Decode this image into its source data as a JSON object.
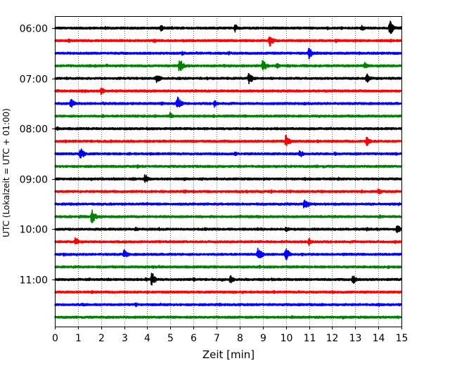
{
  "chart_data": {
    "type": "line",
    "title": "",
    "xlabel": "Zeit  [min]",
    "ylabel": "UTC (Lokalzeit = UTC + 01:00)",
    "xlim": [
      0,
      15
    ],
    "x_ticks": [
      "0",
      "1",
      "2",
      "3",
      "4",
      "5",
      "6",
      "7",
      "8",
      "9",
      "10",
      "11",
      "12",
      "13",
      "14",
      "15"
    ],
    "y_ticks": [
      "06:00",
      "07:00",
      "08:00",
      "09:00",
      "10:00",
      "11:00"
    ],
    "trace_interval_min": 15,
    "grid": "vertical dotted",
    "colors": [
      "#000000",
      "#ff0000",
      "#0000ff",
      "#008000"
    ],
    "traces": [
      {
        "start": "06:00",
        "color": "#000000",
        "events": [
          [
            2.2,
            0.3
          ],
          [
            4.6,
            0.5
          ],
          [
            7.8,
            0.6
          ],
          [
            14.5,
            1.0
          ],
          [
            13.3,
            0.4
          ]
        ]
      },
      {
        "start": "06:15",
        "color": "#ff0000",
        "events": [
          [
            9.3,
            0.9
          ],
          [
            0.6,
            0.3
          ],
          [
            4.3,
            0.3
          ],
          [
            13.0,
            0.2
          ]
        ]
      },
      {
        "start": "06:30",
        "color": "#0000ff",
        "events": [
          [
            11.0,
            0.8
          ],
          [
            5.5,
            0.3
          ],
          [
            7.5,
            0.2
          ]
        ]
      },
      {
        "start": "06:45",
        "color": "#008000",
        "events": [
          [
            5.4,
            1.0
          ],
          [
            9.0,
            0.9
          ],
          [
            9.6,
            0.4
          ],
          [
            13.4,
            0.5
          ],
          [
            1.5,
            0.2
          ]
        ]
      },
      {
        "start": "07:00",
        "color": "#000000",
        "events": [
          [
            4.4,
            0.7
          ],
          [
            8.4,
            0.9
          ],
          [
            13.5,
            0.7
          ],
          [
            0.5,
            0.2
          ]
        ]
      },
      {
        "start": "07:15",
        "color": "#ff0000",
        "events": [
          [
            2.0,
            0.5
          ],
          [
            4.0,
            0.2
          ],
          [
            9.0,
            0.2
          ]
        ]
      },
      {
        "start": "07:30",
        "color": "#0000ff",
        "events": [
          [
            0.7,
            0.7
          ],
          [
            5.3,
            1.0
          ],
          [
            6.9,
            0.5
          ],
          [
            11.0,
            0.2
          ]
        ]
      },
      {
        "start": "07:45",
        "color": "#008000",
        "events": [
          [
            5.0,
            0.5
          ],
          [
            3.5,
            0.2
          ],
          [
            12.0,
            0.2
          ]
        ]
      },
      {
        "start": "08:00",
        "color": "#000000",
        "events": [
          [
            0.1,
            0.3
          ],
          [
            4.0,
            0.2
          ],
          [
            9.5,
            0.2
          ]
        ]
      },
      {
        "start": "08:15",
        "color": "#ff0000",
        "events": [
          [
            10.0,
            0.9
          ],
          [
            13.5,
            0.7
          ],
          [
            6.0,
            0.2
          ]
        ]
      },
      {
        "start": "08:30",
        "color": "#0000ff",
        "events": [
          [
            1.1,
            0.9
          ],
          [
            10.6,
            0.6
          ],
          [
            7.8,
            0.3
          ]
        ]
      },
      {
        "start": "08:45",
        "color": "#008000",
        "events": [
          [
            2.5,
            0.2
          ],
          [
            8.0,
            0.2
          ]
        ]
      },
      {
        "start": "09:00",
        "color": "#000000",
        "events": [
          [
            3.9,
            0.7
          ],
          [
            12.3,
            0.3
          ],
          [
            7.0,
            0.2
          ]
        ]
      },
      {
        "start": "09:15",
        "color": "#ff0000",
        "events": [
          [
            14.0,
            0.5
          ],
          [
            5.6,
            0.3
          ],
          [
            2.0,
            0.2
          ]
        ]
      },
      {
        "start": "09:30",
        "color": "#0000ff",
        "events": [
          [
            10.8,
            0.9
          ],
          [
            4.0,
            0.2
          ]
        ]
      },
      {
        "start": "09:45",
        "color": "#008000",
        "events": [
          [
            1.6,
            1.0
          ],
          [
            8.0,
            0.2
          ],
          [
            11.5,
            0.2
          ]
        ]
      },
      {
        "start": "10:00",
        "color": "#000000",
        "events": [
          [
            14.8,
            0.7
          ],
          [
            10.0,
            0.4
          ],
          [
            3.5,
            0.3
          ],
          [
            6.5,
            0.3
          ]
        ]
      },
      {
        "start": "10:15",
        "color": "#ff0000",
        "events": [
          [
            0.9,
            0.6
          ],
          [
            11.0,
            0.5
          ],
          [
            5.0,
            0.2
          ]
        ]
      },
      {
        "start": "10:30",
        "color": "#0000ff",
        "events": [
          [
            3.0,
            0.7
          ],
          [
            8.8,
            1.0
          ],
          [
            10.0,
            0.9
          ],
          [
            12.5,
            0.2
          ]
        ]
      },
      {
        "start": "10:45",
        "color": "#008000",
        "events": [
          [
            2.5,
            0.2
          ],
          [
            12.5,
            0.2
          ]
        ]
      },
      {
        "start": "11:00",
        "color": "#000000",
        "events": [
          [
            4.2,
            1.0
          ],
          [
            7.6,
            0.6
          ],
          [
            12.9,
            0.7
          ],
          [
            6.0,
            0.3
          ]
        ]
      },
      {
        "start": "11:15",
        "color": "#ff0000",
        "events": [
          [
            4.0,
            0.2
          ],
          [
            9.5,
            0.2
          ]
        ]
      },
      {
        "start": "11:30",
        "color": "#0000ff",
        "events": [
          [
            1.2,
            0.3
          ],
          [
            3.5,
            0.3
          ],
          [
            8.0,
            0.2
          ]
        ]
      },
      {
        "start": "11:45",
        "color": "#008000",
        "events": [
          [
            5.0,
            0.2
          ],
          [
            11.0,
            0.2
          ]
        ]
      }
    ]
  }
}
